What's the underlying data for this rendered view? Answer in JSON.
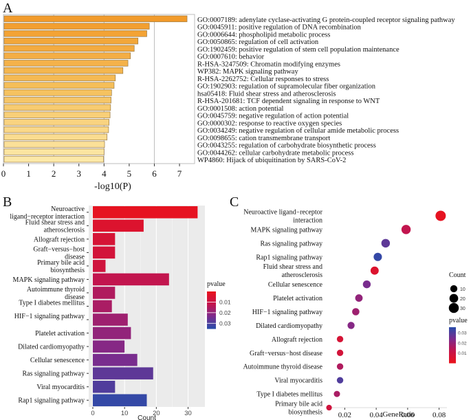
{
  "chart_data": [
    {
      "panel": "A",
      "type": "bar",
      "orientation": "horizontal",
      "xlabel": "-log10(P)",
      "xlim": [
        0,
        7.6
      ],
      "xticks": [
        "0",
        "1",
        "2",
        "3",
        "4",
        "5",
        "6",
        "7"
      ],
      "labels": [
        "GO:0007189: adenylate cyclase-activating G protein-coupled receptor signaling pathway",
        "GO:0045911: positive regulation of DNA recombination",
        "GO:0006644: phospholipid metabolic process",
        "GO:0050865: regulation of cell activation",
        "GO:1902459: positive regulation of stem cell population maintenance",
        "GO:0007610: behavior",
        "R-HSA-3247509: Chromatin modifying enzymes",
        "WP382: MAPK signaling pathway",
        "R-HSA-2262752: Cellular responses to stress",
        "GO:1902903: regulation of supramolecular fiber organization",
        "hsa05418: Fluid shear stress and atherosclerosis",
        "R-HSA-201681: TCF dependent signaling in response to WNT",
        "GO:0001508: action potential",
        "GO:0045759: negative regulation of action potential",
        "GO:0000302: response to reactive oxygen species",
        "GO:0034249: negative regulation of cellular amide metabolic process",
        "GO:0098655: cation transmembrane transport",
        "GO:0043255: regulation of carbohydrate biosynthetic process",
        "GO:0044262: cellular carbohydrate metabolic process",
        "WP4860: Hijack of ubiquitination by SARS-CoV-2"
      ],
      "values": [
        7.3,
        5.8,
        5.7,
        5.35,
        5.2,
        5.05,
        4.95,
        4.75,
        4.45,
        4.4,
        4.3,
        4.28,
        4.26,
        4.24,
        4.2,
        4.18,
        4.12,
        4.02,
        4.0,
        3.98
      ]
    },
    {
      "panel": "B",
      "type": "bar",
      "orientation": "horizontal",
      "xlabel": "Count",
      "xlim": [
        0,
        34
      ],
      "xticks": [
        "0",
        "10",
        "20",
        "30"
      ],
      "legend_title": "pvalue",
      "legend_ticks": [
        "0.01",
        "0.02",
        "0.03"
      ],
      "colors": [
        "#e8131f",
        "#c4144c",
        "#7e2b8c",
        "#2d4ba8"
      ],
      "categories": [
        "Neuroactive ligand−receptor interaction",
        "Fluid shear stress and atherosclerosis",
        "Allograft rejection",
        "Graft−versus−host disease",
        "Primary bile acid biosynthesis",
        "MAPK signaling pathway",
        "Autoimmune thyroid disease",
        "Type I diabetes mellitus",
        "HIF−1 signaling pathway",
        "Platelet activation",
        "Dilated cardiomyopathy",
        "Cellular senescence",
        "Ras signaling pathway",
        "Viral myocarditis",
        "Rap1 signaling pathway"
      ],
      "values": [
        33,
        16,
        7,
        7,
        4,
        24,
        7,
        6,
        11,
        12,
        10,
        14,
        19,
        7,
        17
      ],
      "pvalues": [
        0.0005,
        0.004,
        0.006,
        0.007,
        0.008,
        0.012,
        0.015,
        0.016,
        0.018,
        0.02,
        0.022,
        0.024,
        0.028,
        0.03,
        0.034
      ]
    },
    {
      "panel": "C",
      "type": "scatter",
      "xlabel": "GeneRatio",
      "xlim": [
        0.008,
        0.085
      ],
      "xticks": [
        "0.02",
        "0.04",
        "0.06",
        "0.08"
      ],
      "size_legend_title": "Count",
      "size_legend": [
        "10",
        "20",
        "30"
      ],
      "color_legend_title": "pvalue",
      "color_legend_ticks": [
        "0.03",
        "0.02",
        "0.01"
      ],
      "categories": [
        "Neuroactive ligand−receptor interaction",
        "MAPK signaling pathway",
        "Ras signaling pathway",
        "Rap1 signaling pathway",
        "Fluid shear stress and atherosclerosis",
        "Cellular senescence",
        "Platelet activation",
        "HIF−1 signaling pathway",
        "Dilated cardiomyopathy",
        "Allograft rejection",
        "Graft−versus−host disease",
        "Autoimmune thyroid disease",
        "Viral myocarditis",
        "Type I diabetes mellitus",
        "Primary bile acid biosynthesis"
      ],
      "gene_ratio": [
        0.081,
        0.059,
        0.046,
        0.041,
        0.039,
        0.034,
        0.029,
        0.027,
        0.024,
        0.017,
        0.017,
        0.017,
        0.017,
        0.015,
        0.01
      ],
      "counts": [
        33,
        24,
        19,
        17,
        16,
        14,
        12,
        11,
        10,
        7,
        7,
        7,
        7,
        6,
        4
      ],
      "pvalues": [
        0.0005,
        0.012,
        0.028,
        0.034,
        0.004,
        0.024,
        0.02,
        0.018,
        0.022,
        0.006,
        0.007,
        0.015,
        0.03,
        0.016,
        0.008
      ]
    }
  ],
  "panel_labels": [
    "A",
    "B",
    "C"
  ]
}
